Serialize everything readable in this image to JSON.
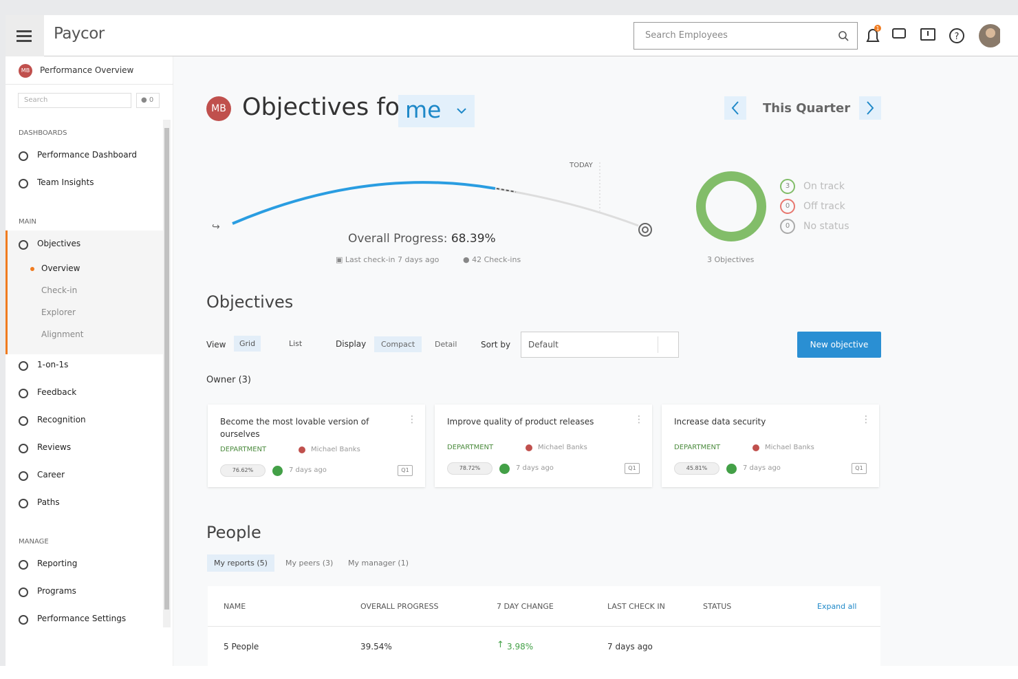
{
  "header": {
    "logo": "Paycor",
    "search_placeholder": "Search Employees",
    "notification_count": "1"
  },
  "sidebar": {
    "avatar": "MB",
    "title": "Performance Overview",
    "search_placeholder": "Search",
    "bell_count": "0",
    "sections": [
      {
        "heading": "DASHBOARDS",
        "items": [
          {
            "label": "Performance Dashboard"
          },
          {
            "label": "Team Insights"
          }
        ]
      },
      {
        "heading": "MAIN",
        "items": [
          {
            "label": "Objectives",
            "children": [
              "Overview",
              "Check-in",
              "Explorer",
              "Alignment"
            ]
          },
          {
            "label": "1-on-1s"
          },
          {
            "label": "Feedback"
          },
          {
            "label": "Recognition"
          },
          {
            "label": "Reviews"
          },
          {
            "label": "Career"
          },
          {
            "label": "Paths"
          }
        ]
      },
      {
        "heading": "MANAGE",
        "items": [
          {
            "label": "Reporting"
          },
          {
            "label": "Programs"
          },
          {
            "label": "Performance Settings"
          }
        ]
      }
    ]
  },
  "main": {
    "avatar": "MB",
    "title": "Objectives for",
    "owner": "me",
    "period": "This Quarter",
    "progress": {
      "today_label": "TODAY",
      "overall_label": "Overall Progress:",
      "overall_value": "68.39%",
      "last_checkin": "Last check-in 7 days ago",
      "checkins": "42 Check-ins"
    },
    "status": {
      "legend": [
        {
          "count": "3",
          "label": "On track"
        },
        {
          "count": "0",
          "label": "Off track"
        },
        {
          "count": "0",
          "label": "No status"
        }
      ],
      "total": "3 Objectives"
    },
    "objectives": {
      "heading": "Objectives",
      "view_label": "View",
      "view_options": [
        "Grid",
        "List"
      ],
      "display_label": "Display",
      "display_options": [
        "Compact",
        "Detail"
      ],
      "sort_label": "Sort by",
      "sort_value": "Default",
      "new_button": "New objective",
      "owner_group": "Owner (3)",
      "cards": [
        {
          "title": "Become the most lovable version of ourselves",
          "tag": "DEPARTMENT",
          "owner": "Michael Banks",
          "progress": "76.62%",
          "updated": "7 days ago",
          "quarter": "Q1"
        },
        {
          "title": "Improve quality of product releases",
          "tag": "DEPARTMENT",
          "owner": "Michael Banks",
          "progress": "78.72%",
          "updated": "7 days ago",
          "quarter": "Q1"
        },
        {
          "title": "Increase data security",
          "tag": "DEPARTMENT",
          "owner": "Michael Banks",
          "progress": "45.81%",
          "updated": "7 days ago",
          "quarter": "Q1"
        }
      ]
    },
    "people": {
      "heading": "People",
      "tabs": [
        "My reports (5)",
        "My peers (3)",
        "My manager (1)"
      ],
      "columns": [
        "NAME",
        "OVERALL PROGRESS",
        "7 DAY CHANGE",
        "LAST CHECK IN",
        "STATUS"
      ],
      "expand_all": "Expand all",
      "rows": [
        [
          "5 People",
          "39.54%",
          "3.98%",
          "7 days ago"
        ]
      ]
    }
  }
}
